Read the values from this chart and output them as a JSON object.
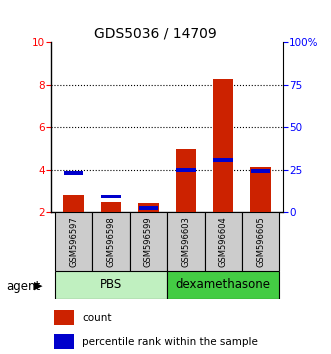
{
  "title": "GDS5036 / 14709",
  "samples": [
    "GSM596597",
    "GSM596598",
    "GSM596599",
    "GSM596603",
    "GSM596604",
    "GSM596605"
  ],
  "count_values": [
    2.8,
    2.5,
    2.45,
    5.0,
    8.3,
    4.15
  ],
  "percentile_values": [
    3.85,
    2.75,
    2.2,
    4.0,
    4.45,
    3.95
  ],
  "y_min": 2,
  "y_max": 10,
  "y_ticks": [
    2,
    4,
    6,
    8,
    10
  ],
  "y_right_ticks": [
    0,
    25,
    50,
    75,
    100
  ],
  "y_right_labels": [
    "0",
    "25",
    "50",
    "75",
    "100%"
  ],
  "bar_color": "#cc2200",
  "marker_color": "#0000cc",
  "bar_width": 0.55,
  "group_box_color_pbs": "#c0f0c0",
  "group_box_color_dexa": "#44cc44",
  "sample_box_color": "#cccccc"
}
